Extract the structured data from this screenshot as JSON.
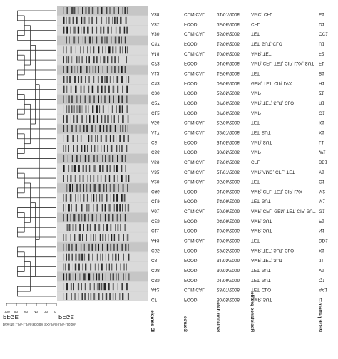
{
  "figure": {
    "orientation": "mirrored-vertically",
    "dendrogram": {
      "label": "PFGE",
      "tick_labels": [
        "100",
        "80",
        "60",
        "40",
        "20",
        "0"
      ],
      "scale_note": "Dice (Tol 1.0%-1.0%) (H>0.0% S>0.0%) [0.0%-100.0%]"
    },
    "gel": {
      "label": "PFGE"
    },
    "columns": [
      {
        "key": "id",
        "header": "ID sample"
      },
      {
        "key": "source",
        "header": "Source"
      },
      {
        "key": "date",
        "header": "Isolation date"
      },
      {
        "key": "resistance",
        "header": "Resistance profile"
      },
      {
        "key": "pfge",
        "header": "PFGE pattern"
      }
    ],
    "isolates": [
      {
        "id": "A38",
        "source": "CLINICAL",
        "date": "21/07/2006",
        "resistance": "AMC, CFL",
        "pfge": "E1"
      },
      {
        "id": "A31",
        "source": "FOOD",
        "date": "25/06/2006",
        "resistance": "CFL",
        "pfge": "D1"
      },
      {
        "id": "A30",
        "source": "CLINICAL",
        "date": "25/06/2006",
        "resistance": "TET",
        "pfge": "CC1"
      },
      {
        "id": "C47",
        "source": "FOOD",
        "date": "15/06/2006",
        "resistance": "TET, SUT, CLO",
        "pfge": "U1"
      },
      {
        "id": "A48",
        "source": "CLINICAL",
        "date": "10/06/2006",
        "resistance": "AMP, TET",
        "pfge": "F2"
      },
      {
        "id": "C73",
        "source": "FOOD",
        "date": "01/06/2006",
        "resistance": "AMP, CFL, TET, CIP, LVX, SUT",
        "pfge": "F1"
      },
      {
        "id": "A12",
        "source": "CLINICAL",
        "date": "15/06/2006",
        "resistance": "TET",
        "pfge": "B1"
      },
      {
        "id": "C43",
        "source": "FOOD",
        "date": "06/06/2006",
        "resistance": "GEN, TET, CIP, LVX",
        "pfge": "H1"
      },
      {
        "id": "C90",
        "source": "FOOD",
        "date": "26/05/2006",
        "resistance": "AMP",
        "pfge": "Z1"
      },
      {
        "id": "C27",
        "source": "FOOD",
        "date": "07/06/2006",
        "resistance": "AMP, TET, SUT, CLO",
        "pfge": "R1"
      },
      {
        "id": "C12",
        "source": "FOOD",
        "date": "07/06/2006",
        "resistance": "AMP",
        "pfge": "O1"
      },
      {
        "id": "A56",
        "source": "CLINICAL",
        "date": "25/06/2006",
        "resistance": "TET",
        "pfge": "K1"
      },
      {
        "id": "A17",
        "source": "CLINICAL",
        "date": "22/07/2006",
        "resistance": "TET, SUT",
        "pfge": "X1"
      },
      {
        "id": "C6",
        "source": "FOOD",
        "date": "31/05/2006",
        "resistance": "AMP, SUT",
        "pfge": "L1"
      },
      {
        "id": "C66",
        "source": "FOOD",
        "date": "30/05/2006",
        "resistance": "AMP",
        "pfge": "W1"
      },
      {
        "id": "A59",
        "source": "CLINICAL",
        "date": "16/06/2006",
        "resistance": "CFL",
        "pfge": "BB1"
      },
      {
        "id": "A32",
        "source": "CLINICAL",
        "date": "21/07/2006",
        "resistance": "AMP, AMC, CFL, TET",
        "pfge": "Y1"
      },
      {
        "id": "A20",
        "source": "CLINICAL",
        "date": "05/06/2006",
        "resistance": "TET",
        "pfge": "C1"
      },
      {
        "id": "C46",
        "source": "FOOD",
        "date": "01/06/2006",
        "resistance": "AMP, CFL, TET, CIP, LVX",
        "pfge": "M2"
      },
      {
        "id": "C19",
        "source": "FOOD",
        "date": "14/06/2006",
        "resistance": "TET, SUT",
        "pfge": "M1"
      },
      {
        "id": "A61",
        "source": "CLINICAL",
        "date": "20/06/2006",
        "resistance": "AMP, CFL, GEN, TET, CIP, SUT",
        "pfge": "G1"
      },
      {
        "id": "C25",
        "source": "FOOD",
        "date": "04/06/2006",
        "resistance": "AMP, SUT",
        "pfge": "P1"
      },
      {
        "id": "C11",
        "source": "FOOD",
        "date": "10/06/2006",
        "resistance": "AMP, SUT",
        "pfge": "N1"
      },
      {
        "id": "A49",
        "source": "CLINICAL",
        "date": "10/06/2006",
        "resistance": "TET",
        "pfge": "DD1"
      },
      {
        "id": "C65",
        "source": "FOOD",
        "date": "29/05/2006",
        "resistance": "AMP, TET, SUT, CLO",
        "pfge": "X1"
      },
      {
        "id": "C8",
        "source": "FOOD",
        "date": "31/05/2006",
        "resistance": "AMP, TET, SUT",
        "pfge": "J1"
      },
      {
        "id": "C58",
        "source": "FOOD",
        "date": "30/05/2006",
        "resistance": "TET, SUT",
        "pfge": "V1"
      },
      {
        "id": "C35",
        "source": "FOOD",
        "date": "01/06/2006",
        "resistance": "TET, SUT",
        "pfge": "Q1"
      },
      {
        "id": "A42",
        "source": "CLINICAL",
        "date": "28/07/2006",
        "resistance": "TET, CLO",
        "pfge": "AA1"
      },
      {
        "id": "C7",
        "source": "FOOD",
        "date": "30/05/2006",
        "resistance": "AMP, SUT",
        "pfge": "I1"
      }
    ]
  }
}
